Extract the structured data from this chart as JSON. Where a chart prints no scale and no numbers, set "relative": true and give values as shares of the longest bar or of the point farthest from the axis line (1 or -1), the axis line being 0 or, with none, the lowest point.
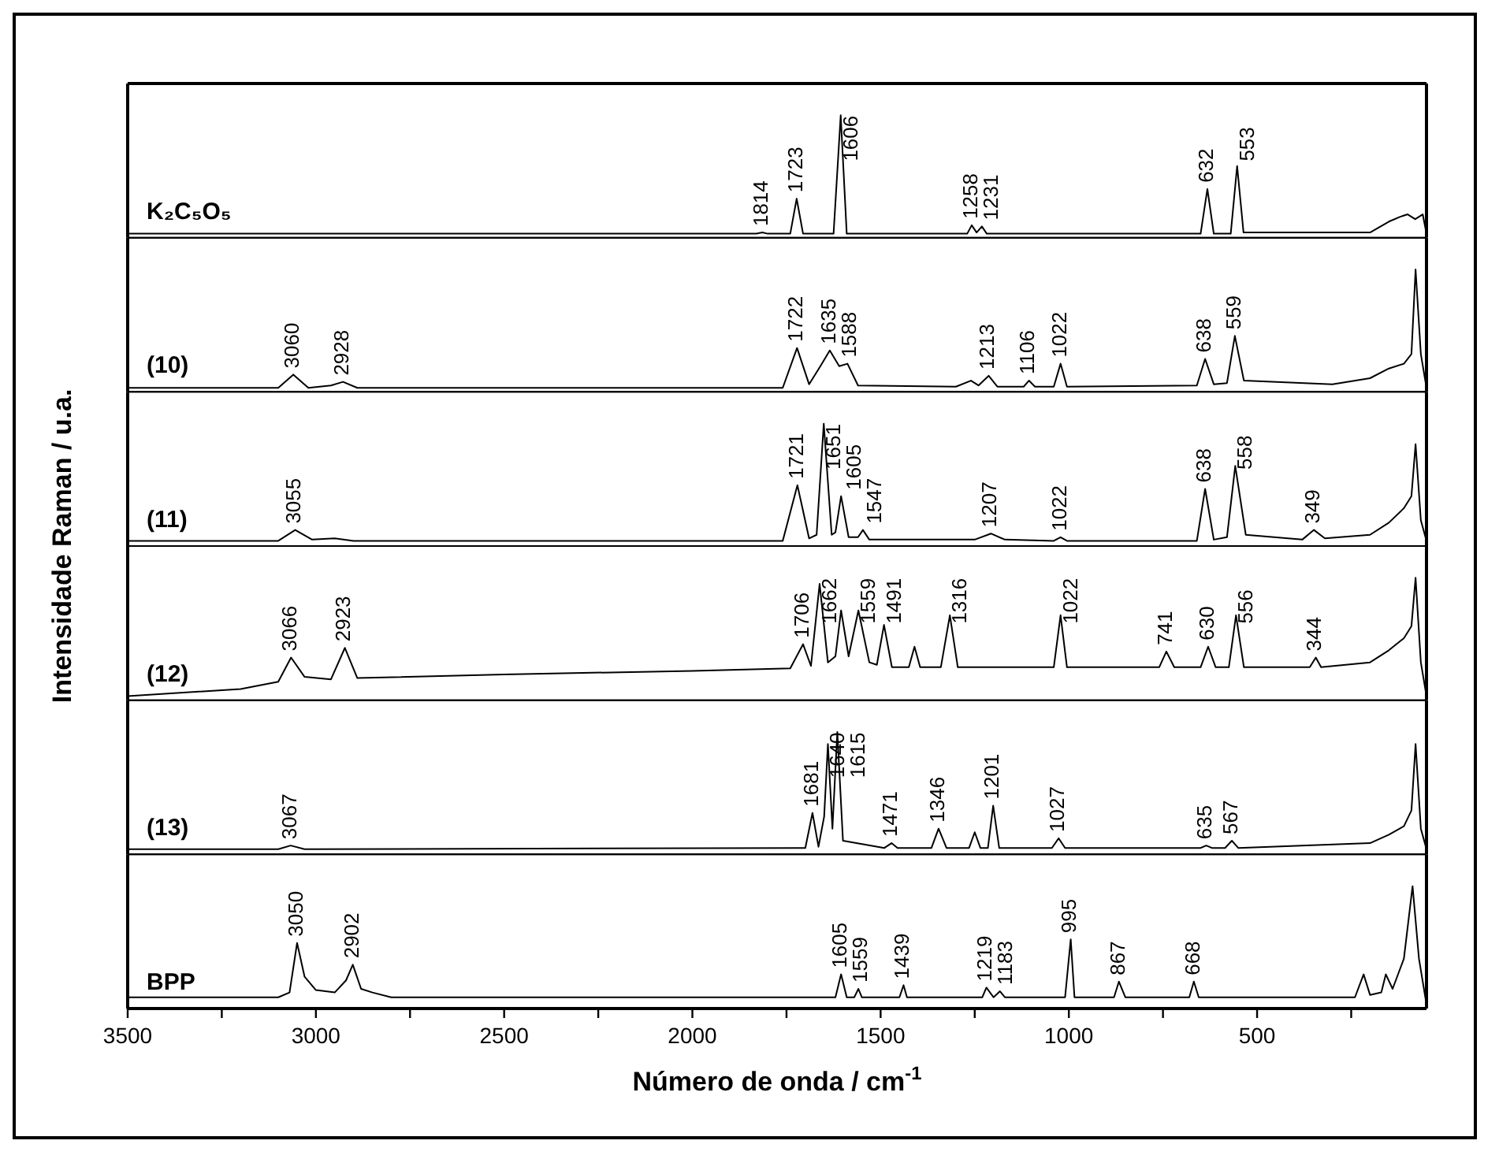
{
  "chart_data": [
    {
      "type": "line",
      "relative": true,
      "xlim": [
        3500,
        50
      ],
      "tick_labels": false,
      "series": [
        {
          "name": "K₂C₅O₅",
          "color": "#000000",
          "x": [
            3500,
            3300,
            3200,
            1830,
            1814,
            1800,
            1740,
            1723,
            1706,
            1625,
            1606,
            1590,
            1270,
            1258,
            1245,
            1231,
            1218,
            650,
            632,
            615,
            570,
            553,
            536,
            200,
            150,
            120,
            100,
            80,
            60,
            50
          ],
          "values": [
            0.02,
            0.02,
            0.02,
            0.02,
            0.03,
            0.02,
            0.02,
            0.31,
            0.02,
            0.02,
            1,
            0.02,
            0.02,
            0.09,
            0.03,
            0.08,
            0.02,
            0.02,
            0.39,
            0.02,
            0.02,
            0.58,
            0.03,
            0.03,
            0.12,
            0.16,
            0.18,
            0.14,
            0.18,
            0.02
          ]
        }
      ],
      "annotations": [
        {
          "text": "1814",
          "x": 1814,
          "y": 0.03
        },
        {
          "text": "1723",
          "x": 1723,
          "y": 0.31
        },
        {
          "text": "1606",
          "x": 1606,
          "y": 1
        },
        {
          "text": "1258",
          "x": 1258,
          "y": 0.09
        },
        {
          "text": "1231",
          "x": 1231,
          "y": 0.08
        },
        {
          "text": "632",
          "x": 632,
          "y": 0.39
        },
        {
          "text": "553",
          "x": 553,
          "y": 0.58
        }
      ]
    },
    {
      "type": "line",
      "relative": true,
      "xlim": [
        3500,
        50
      ],
      "tick_labels": false,
      "series": [
        {
          "name": "(10)",
          "color": "#000000",
          "x": [
            3500,
            3100,
            3060,
            3020,
            2960,
            2928,
            2890,
            1760,
            1722,
            1690,
            1660,
            1635,
            1610,
            1588,
            1560,
            1300,
            1260,
            1240,
            1213,
            1190,
            1120,
            1106,
            1090,
            1040,
            1022,
            1005,
            660,
            638,
            615,
            580,
            559,
            535,
            300,
            200,
            150,
            110,
            90,
            79,
            65,
            50
          ],
          "values": [
            0.02,
            0.02,
            0.13,
            0.02,
            0.04,
            0.07,
            0.02,
            0.02,
            0.35,
            0.05,
            0.2,
            0.33,
            0.2,
            0.22,
            0.04,
            0.03,
            0.08,
            0.04,
            0.12,
            0.03,
            0.03,
            0.08,
            0.03,
            0.03,
            0.22,
            0.03,
            0.04,
            0.26,
            0.05,
            0.06,
            0.45,
            0.08,
            0.05,
            0.1,
            0.18,
            0.22,
            0.3,
            1,
            0.3,
            0.02
          ]
        }
      ],
      "annotations": [
        {
          "text": "3060",
          "x": 3060,
          "y": 0.13
        },
        {
          "text": "2928",
          "x": 2928,
          "y": 0.07
        },
        {
          "text": "1722",
          "x": 1722,
          "y": 0.35
        },
        {
          "text": "1635",
          "x": 1635,
          "y": 0.33
        },
        {
          "text": "1588",
          "x": 1588,
          "y": 0.22
        },
        {
          "text": "1213",
          "x": 1213,
          "y": 0.12
        },
        {
          "text": "1106",
          "x": 1106,
          "y": 0.08
        },
        {
          "text": "1022",
          "x": 1022,
          "y": 0.22
        },
        {
          "text": "638",
          "x": 638,
          "y": 0.26
        },
        {
          "text": "559",
          "x": 559,
          "y": 0.45
        }
      ]
    },
    {
      "type": "line",
      "relative": true,
      "xlim": [
        3500,
        50
      ],
      "tick_labels": false,
      "ylabel": "Intensidade Raman / u.a.",
      "series": [
        {
          "name": "(11)",
          "color": "#000000",
          "x": [
            3500,
            3100,
            3055,
            3010,
            2950,
            2900,
            1760,
            1721,
            1690,
            1670,
            1651,
            1630,
            1620,
            1605,
            1585,
            1560,
            1547,
            1530,
            1250,
            1207,
            1170,
            1040,
            1022,
            1005,
            660,
            638,
            615,
            580,
            558,
            530,
            380,
            349,
            320,
            200,
            150,
            110,
            90,
            79,
            65,
            50
          ],
          "values": [
            0.03,
            0.03,
            0.12,
            0.04,
            0.05,
            0.03,
            0.03,
            0.49,
            0.05,
            0.08,
            1,
            0.08,
            0.1,
            0.4,
            0.06,
            0.06,
            0.12,
            0.04,
            0.04,
            0.09,
            0.04,
            0.03,
            0.06,
            0.03,
            0.03,
            0.46,
            0.04,
            0.06,
            0.65,
            0.08,
            0.04,
            0.12,
            0.05,
            0.08,
            0.18,
            0.3,
            0.4,
            0.83,
            0.2,
            0.03
          ]
        }
      ],
      "annotations": [
        {
          "text": "3055",
          "x": 3055,
          "y": 0.12
        },
        {
          "text": "1721",
          "x": 1721,
          "y": 0.49
        },
        {
          "text": "1651",
          "x": 1651,
          "y": 1
        },
        {
          "text": "1605",
          "x": 1605,
          "y": 0.4
        },
        {
          "text": "1547",
          "x": 1547,
          "y": 0.12
        },
        {
          "text": "1207",
          "x": 1207,
          "y": 0.09
        },
        {
          "text": "1022",
          "x": 1022,
          "y": 0.06
        },
        {
          "text": "638",
          "x": 638,
          "y": 0.46
        },
        {
          "text": "558",
          "x": 558,
          "y": 0.65
        },
        {
          "text": "349",
          "x": 349,
          "y": 0.12
        }
      ]
    },
    {
      "type": "line",
      "relative": true,
      "xlim": [
        3500,
        50
      ],
      "tick_labels": false,
      "series": [
        {
          "name": "(12)",
          "color": "#000000",
          "x": [
            3500,
            3200,
            3100,
            3066,
            3030,
            2960,
            2923,
            2890,
            2500,
            2000,
            1740,
            1706,
            1685,
            1662,
            1640,
            1620,
            1605,
            1585,
            1559,
            1530,
            1510,
            1491,
            1470,
            1425,
            1410,
            1395,
            1340,
            1316,
            1295,
            1040,
            1022,
            1005,
            760,
            741,
            720,
            650,
            630,
            610,
            575,
            556,
            535,
            360,
            344,
            330,
            200,
            150,
            110,
            90,
            79,
            65,
            50
          ],
          "values": [
            0.02,
            0.08,
            0.14,
            0.34,
            0.18,
            0.16,
            0.42,
            0.17,
            0.2,
            0.23,
            0.25,
            0.45,
            0.27,
            0.95,
            0.3,
            0.35,
            0.73,
            0.35,
            0.73,
            0.3,
            0.28,
            0.61,
            0.26,
            0.26,
            0.43,
            0.26,
            0.26,
            0.69,
            0.26,
            0.26,
            0.69,
            0.26,
            0.26,
            0.39,
            0.26,
            0.26,
            0.43,
            0.26,
            0.26,
            0.69,
            0.26,
            0.26,
            0.34,
            0.26,
            0.3,
            0.4,
            0.5,
            0.6,
            1,
            0.3,
            0.02
          ]
        }
      ],
      "annotations": [
        {
          "text": "3066",
          "x": 3066,
          "y": 0.34
        },
        {
          "text": "2923",
          "x": 2923,
          "y": 0.42
        },
        {
          "text": "1706",
          "x": 1706,
          "y": 0.45
        },
        {
          "text": "1662",
          "x": 1662,
          "y": 0.95
        },
        {
          "text": "1559",
          "x": 1559,
          "y": 0.73
        },
        {
          "text": "1491",
          "x": 1491,
          "y": 0.61
        },
        {
          "text": "1316",
          "x": 1316,
          "y": 0.69
        },
        {
          "text": "1022",
          "x": 1022,
          "y": 0.69
        },
        {
          "text": "741",
          "x": 741,
          "y": 0.39
        },
        {
          "text": "630",
          "x": 630,
          "y": 0.43
        },
        {
          "text": "556",
          "x": 556,
          "y": 0.69
        },
        {
          "text": "344",
          "x": 344,
          "y": 0.34
        }
      ]
    },
    {
      "type": "line",
      "relative": true,
      "xlim": [
        3500,
        50
      ],
      "tick_labels": false,
      "series": [
        {
          "name": "(13)",
          "color": "#000000",
          "x": [
            3500,
            3100,
            3067,
            3030,
            1700,
            1681,
            1665,
            1650,
            1640,
            1628,
            1615,
            1600,
            1490,
            1471,
            1455,
            1365,
            1346,
            1325,
            1265,
            1250,
            1235,
            1215,
            1201,
            1185,
            1045,
            1027,
            1010,
            650,
            635,
            620,
            585,
            567,
            550,
            200,
            150,
            110,
            90,
            79,
            65,
            50
          ],
          "values": [
            0.03,
            0.03,
            0.06,
            0.03,
            0.04,
            0.33,
            0.05,
            0.3,
            0.9,
            0.2,
            1,
            0.1,
            0.04,
            0.08,
            0.04,
            0.04,
            0.2,
            0.04,
            0.04,
            0.17,
            0.04,
            0.04,
            0.39,
            0.04,
            0.04,
            0.12,
            0.04,
            0.04,
            0.06,
            0.04,
            0.04,
            0.1,
            0.04,
            0.08,
            0.15,
            0.22,
            0.35,
            0.9,
            0.2,
            0.03
          ]
        }
      ],
      "annotations": [
        {
          "text": "3067",
          "x": 3067,
          "y": 0.06
        },
        {
          "text": "1681",
          "x": 1681,
          "y": 0.33
        },
        {
          "text": "1640",
          "x": 1640,
          "y": 0.9
        },
        {
          "text": "1615",
          "x": 1615,
          "y": 1
        },
        {
          "text": "1471",
          "x": 1471,
          "y": 0.08
        },
        {
          "text": "1346",
          "x": 1346,
          "y": 0.2
        },
        {
          "text": "1201",
          "x": 1201,
          "y": 0.39
        },
        {
          "text": "1027",
          "x": 1027,
          "y": 0.12
        },
        {
          "text": "635",
          "x": 635,
          "y": 0.06
        },
        {
          "text": "567",
          "x": 567,
          "y": 0.1
        }
      ]
    },
    {
      "type": "line",
      "relative": true,
      "xlim": [
        3500,
        50
      ],
      "tick_labels": "x",
      "xlabel": "Número de onda / cm$^{-1}$",
      "xticks": [
        3500,
        {
          "value": 3250,
          "label": null
        },
        3000,
        {
          "value": 2750,
          "label": null
        },
        2500,
        {
          "value": 2250,
          "label": null
        },
        2000,
        {
          "value": 1750,
          "label": null
        },
        1500,
        {
          "value": 1250,
          "label": null
        },
        1000,
        {
          "value": 750,
          "label": null
        },
        500,
        {
          "value": 250,
          "label": null
        }
      ],
      "series": [
        {
          "name": "BPP",
          "color": "#000000",
          "x": [
            3500,
            3100,
            3070,
            3050,
            3030,
            3000,
            2950,
            2920,
            2902,
            2880,
            2850,
            2800,
            1620,
            1605,
            1590,
            1570,
            1559,
            1550,
            1450,
            1439,
            1430,
            1230,
            1219,
            1200,
            1183,
            1170,
            1010,
            995,
            985,
            880,
            867,
            850,
            680,
            668,
            655,
            240,
            217,
            200,
            170,
            158,
            140,
            110,
            87,
            70,
            50
          ],
          "values": [
            0.08,
            0.08,
            0.12,
            0.53,
            0.25,
            0.14,
            0.12,
            0.22,
            0.35,
            0.15,
            0.12,
            0.08,
            0.08,
            0.27,
            0.08,
            0.08,
            0.15,
            0.08,
            0.08,
            0.18,
            0.08,
            0.08,
            0.16,
            0.08,
            0.13,
            0.08,
            0.08,
            0.56,
            0.08,
            0.08,
            0.21,
            0.08,
            0.08,
            0.21,
            0.08,
            0.08,
            0.27,
            0.1,
            0.12,
            0.27,
            0.15,
            0.4,
            1,
            0.4,
            0.02
          ]
        }
      ],
      "annotations": [
        {
          "text": "3050",
          "x": 3050,
          "y": 0.53
        },
        {
          "text": "2902",
          "x": 2902,
          "y": 0.35
        },
        {
          "text": "1605",
          "x": 1605,
          "y": 0.27
        },
        {
          "text": "1559",
          "x": 1559,
          "y": 0.15
        },
        {
          "text": "1439",
          "x": 1439,
          "y": 0.18
        },
        {
          "text": "1219",
          "x": 1219,
          "y": 0.16
        },
        {
          "text": "1183",
          "x": 1183,
          "y": 0.13
        },
        {
          "text": "995",
          "x": 995,
          "y": 0.56
        },
        {
          "text": "867",
          "x": 867,
          "y": 0.21
        },
        {
          "text": "668",
          "x": 668,
          "y": 0.21
        }
      ]
    }
  ]
}
